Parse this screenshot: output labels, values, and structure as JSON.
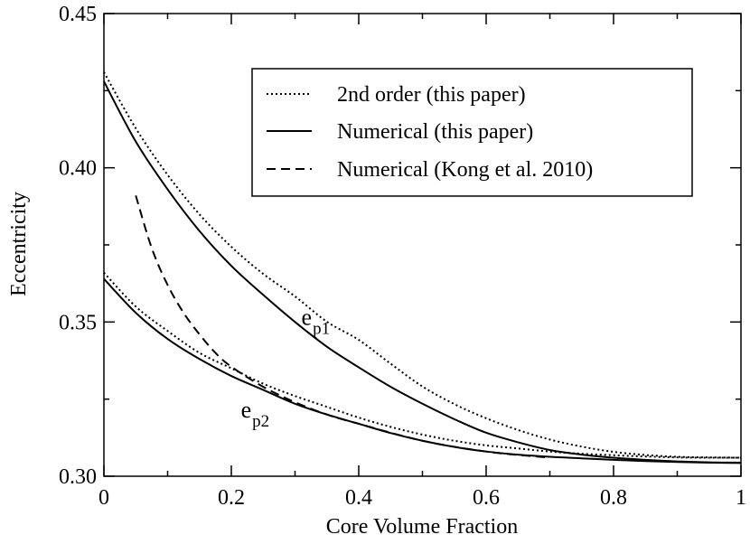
{
  "chart_data": {
    "type": "line",
    "title": "",
    "xlabel": "Core Volume Fraction",
    "ylabel": "Eccentricity",
    "xlim": [
      0,
      1
    ],
    "ylim": [
      0.3,
      0.45
    ],
    "x_ticks": [
      {
        "value": 0,
        "label": "0"
      },
      {
        "value": 0.2,
        "label": "0.2"
      },
      {
        "value": 0.4,
        "label": "0.4"
      },
      {
        "value": 0.6,
        "label": "0.6"
      },
      {
        "value": 0.8,
        "label": "0.8"
      },
      {
        "value": 1,
        "label": "1"
      }
    ],
    "y_ticks": [
      {
        "value": 0.3,
        "label": "0.30"
      },
      {
        "value": 0.35,
        "label": "0.35"
      },
      {
        "value": 0.4,
        "label": "0.40"
      },
      {
        "value": 0.45,
        "label": "0.45"
      }
    ],
    "legend_position": "top-right",
    "legend": [
      {
        "label": "2nd order (this paper)",
        "style": "dotted"
      },
      {
        "label": "Numerical (this paper)",
        "style": "solid"
      },
      {
        "label": "Numerical (Kong et al. 2010)",
        "style": "dashed"
      }
    ],
    "annotations": [
      {
        "main": "e",
        "sub": "p1",
        "x": 0.31,
        "y": 0.349
      },
      {
        "main": "e",
        "sub": "p2",
        "x": 0.215,
        "y": 0.319
      }
    ],
    "series": [
      {
        "name": "2nd order (this paper) e_p1",
        "style": "dotted",
        "x": [
          0,
          0.05,
          0.1,
          0.15,
          0.2,
          0.25,
          0.3,
          0.35,
          0.4,
          0.45,
          0.5,
          0.55,
          0.6,
          0.65,
          0.7,
          0.75,
          0.8,
          0.85,
          0.9,
          0.95,
          1.0
        ],
        "y": [
          0.431,
          0.4128,
          0.3977,
          0.3849,
          0.3744,
          0.3656,
          0.3583,
          0.3501,
          0.3442,
          0.3365,
          0.3291,
          0.3234,
          0.3188,
          0.315,
          0.3119,
          0.3096,
          0.3079,
          0.3069,
          0.3063,
          0.3061,
          0.306
        ]
      },
      {
        "name": "Numerical (this paper) e_p1",
        "style": "solid",
        "x": [
          0,
          0.05,
          0.1,
          0.15,
          0.2,
          0.25,
          0.3,
          0.35,
          0.4,
          0.45,
          0.5,
          0.55,
          0.6,
          0.65,
          0.7,
          0.75,
          0.8,
          0.85,
          0.9,
          0.95,
          1.0
        ],
        "y": [
          0.428,
          0.4085,
          0.393,
          0.3795,
          0.3682,
          0.3588,
          0.35,
          0.342,
          0.3353,
          0.329,
          0.3235,
          0.3185,
          0.3141,
          0.311,
          0.3085,
          0.307,
          0.306,
          0.3053,
          0.3048,
          0.3045,
          0.3044
        ]
      },
      {
        "name": "2nd order (this paper) e_p2",
        "style": "dotted",
        "x": [
          0,
          0.05,
          0.1,
          0.15,
          0.2,
          0.25,
          0.3,
          0.35,
          0.4,
          0.45,
          0.5,
          0.55,
          0.6,
          0.65,
          0.7,
          0.75,
          0.8,
          0.85,
          0.9,
          0.95,
          1.0
        ],
        "y": [
          0.366,
          0.355,
          0.3471,
          0.34,
          0.335,
          0.33,
          0.326,
          0.3225,
          0.319,
          0.316,
          0.3135,
          0.3115,
          0.31,
          0.309,
          0.308,
          0.3073,
          0.3068,
          0.3064,
          0.3061,
          0.306,
          0.306
        ]
      },
      {
        "name": "Numerical (this paper) e_p2",
        "style": "solid",
        "x": [
          0,
          0.05,
          0.1,
          0.15,
          0.2,
          0.25,
          0.3,
          0.35,
          0.4,
          0.45,
          0.5,
          0.55,
          0.6,
          0.65,
          0.7,
          0.75,
          0.8,
          0.85,
          0.9,
          0.95,
          1.0
        ],
        "y": [
          0.364,
          0.353,
          0.3445,
          0.338,
          0.3325,
          0.328,
          0.3235,
          0.32,
          0.317,
          0.314,
          0.3115,
          0.3095,
          0.308,
          0.307,
          0.3063,
          0.3058,
          0.3053,
          0.3049,
          0.3046,
          0.3044,
          0.3043
        ]
      },
      {
        "name": "Numerical (Kong et al. 2010)",
        "style": "dashed",
        "x": [
          0.05,
          0.075,
          0.1,
          0.125,
          0.15,
          0.175,
          0.2,
          0.25,
          0.3,
          0.35,
          0.4,
          0.5,
          0.6,
          0.7
        ],
        "y": [
          0.391,
          0.374,
          0.362,
          0.353,
          0.346,
          0.34,
          0.3355,
          0.329,
          0.324,
          0.32,
          0.317,
          0.3115,
          0.308,
          0.306
        ]
      }
    ]
  }
}
